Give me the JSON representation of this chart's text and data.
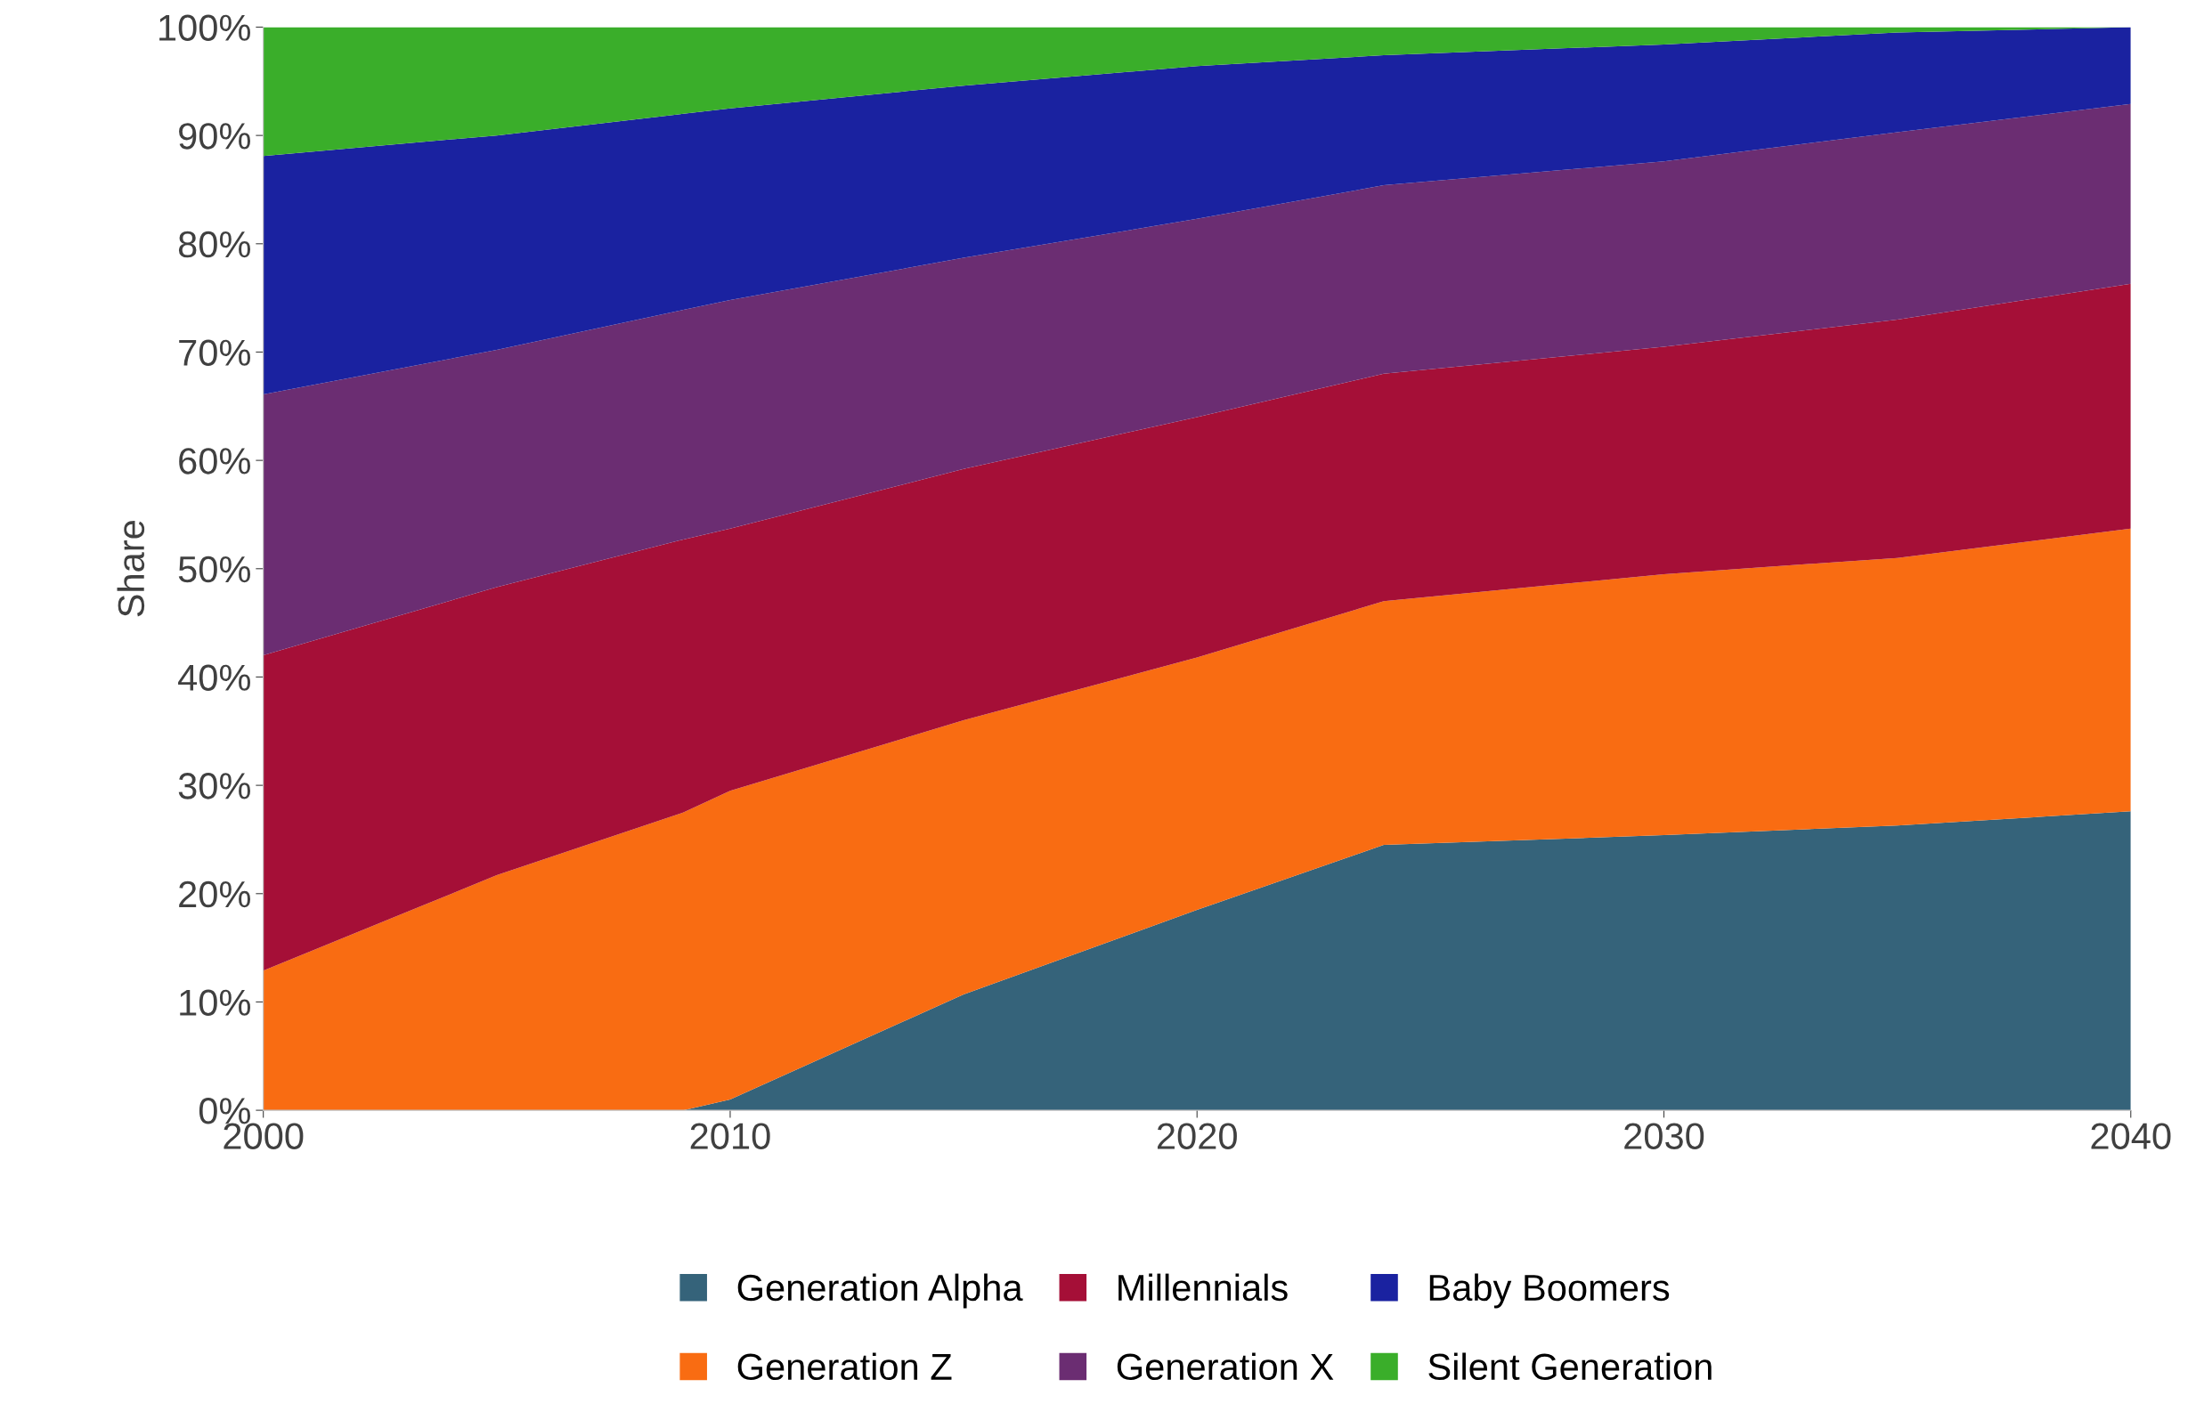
{
  "chart_data": {
    "type": "area",
    "stacked": true,
    "ylabel": "Share",
    "x": [
      2000,
      2005,
      2009,
      2010,
      2015,
      2020,
      2024,
      2030,
      2035,
      2040
    ],
    "series": [
      {
        "name": "Generation Alpha",
        "color": "#35637a",
        "values": [
          0,
          0,
          0,
          1.0,
          10.7,
          18.5,
          24.5,
          25.4,
          26.3,
          27.6
        ]
      },
      {
        "name": "Generation Z",
        "color": "#f96c12",
        "values": [
          12.9,
          21.7,
          27.5,
          28.5,
          25.3,
          23.3,
          22.5,
          24.1,
          24.7,
          26.1
        ]
      },
      {
        "name": "Millennials",
        "color": "#a50f37",
        "values": [
          29.1,
          26.6,
          25.2,
          24.2,
          23.2,
          22.2,
          21.0,
          21.0,
          22.0,
          22.6
        ]
      },
      {
        "name": "Generation X",
        "color": "#6b2d72",
        "values": [
          24.1,
          21.9,
          21.2,
          21.1,
          19.5,
          18.3,
          17.4,
          17.1,
          17.3,
          16.6
        ]
      },
      {
        "name": "Baby Boomers",
        "color": "#1a22a0",
        "values": [
          22.0,
          19.8,
          18.1,
          17.7,
          15.9,
          14.1,
          12.0,
          10.8,
          9.2,
          7.1
        ]
      },
      {
        "name": "Silent Generation",
        "color": "#3aae2a",
        "values": [
          11.9,
          10.0,
          8.0,
          7.5,
          5.4,
          3.6,
          2.6,
          1.6,
          0.5,
          0.0
        ]
      }
    ],
    "xlim": [
      2000,
      2040
    ],
    "xticks": [
      2000,
      2010,
      2020,
      2030,
      2040
    ],
    "ylim": [
      0,
      100
    ],
    "yticks": [
      {
        "value": 0,
        "label": "0%"
      },
      {
        "value": 10,
        "label": "10%"
      },
      {
        "value": 20,
        "label": "20%"
      },
      {
        "value": 30,
        "label": "30%"
      },
      {
        "value": 40,
        "label": "40%"
      },
      {
        "value": 50,
        "label": "50%"
      },
      {
        "value": 60,
        "label": "60%"
      },
      {
        "value": 70,
        "label": "70%"
      },
      {
        "value": 80,
        "label": "80%"
      },
      {
        "value": 90,
        "label": "90%"
      },
      {
        "value": 100,
        "label": "100%"
      }
    ],
    "legend": "bottom"
  }
}
